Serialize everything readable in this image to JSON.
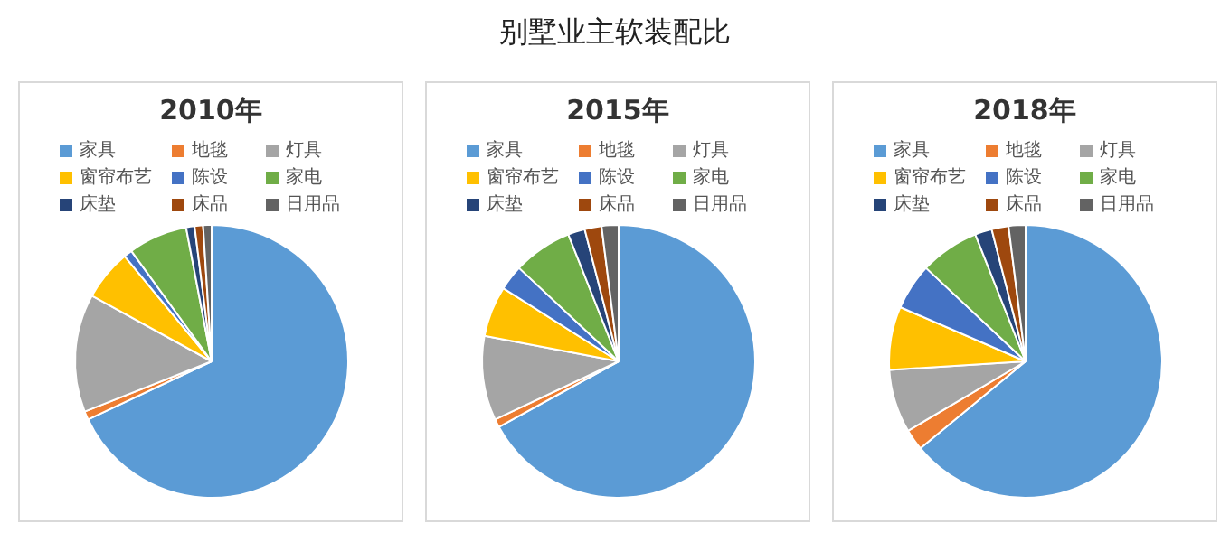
{
  "chart_data": [
    {
      "type": "pie",
      "title": "2010年",
      "annotations": [
        "别墅业主软装配比"
      ],
      "legend": "top",
      "categories": [
        "家具",
        "地毯",
        "灯具",
        "窗帘布艺",
        "陈设",
        "家电",
        "床垫",
        "床品",
        "日用品"
      ],
      "values": [
        68,
        1,
        14,
        6,
        1,
        7,
        1,
        1,
        1
      ],
      "colors": [
        "#5b9bd5",
        "#ed7d31",
        "#a5a5a5",
        "#ffc000",
        "#4472c4",
        "#70ad47",
        "#264478",
        "#9e480e",
        "#636363"
      ]
    },
    {
      "type": "pie",
      "title": "2015年",
      "legend": "top",
      "categories": [
        "家具",
        "地毯",
        "灯具",
        "窗帘布艺",
        "陈设",
        "家电",
        "床垫",
        "床品",
        "日用品"
      ],
      "values": [
        67,
        1,
        10,
        6,
        3,
        7,
        2,
        2,
        2
      ],
      "colors": [
        "#5b9bd5",
        "#ed7d31",
        "#a5a5a5",
        "#ffc000",
        "#4472c4",
        "#70ad47",
        "#264478",
        "#9e480e",
        "#636363"
      ]
    },
    {
      "type": "pie",
      "title": "2018年",
      "legend": "top",
      "categories": [
        "家具",
        "地毯",
        "灯具",
        "窗帘布艺",
        "陈设",
        "家电",
        "床垫",
        "床品",
        "日用品"
      ],
      "values": [
        64,
        2.5,
        7.5,
        7.5,
        5.5,
        7,
        2,
        2,
        2
      ],
      "colors": [
        "#5b9bd5",
        "#ed7d31",
        "#a5a5a5",
        "#ffc000",
        "#4472c4",
        "#70ad47",
        "#264478",
        "#9e480e",
        "#636363"
      ]
    }
  ]
}
